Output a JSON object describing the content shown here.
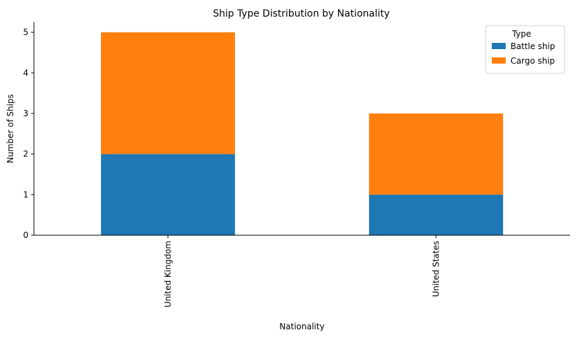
{
  "chart_data": {
    "type": "bar",
    "stacked": true,
    "title": "Ship Type Distribution by Nationality",
    "xlabel": "Nationality",
    "ylabel": "Number of Ships",
    "categories": [
      "United Kingdom",
      "United States"
    ],
    "series": [
      {
        "name": "Battle ship",
        "values": [
          2,
          1
        ],
        "color": "#1f77b4"
      },
      {
        "name": "Cargo ship",
        "values": [
          3,
          2
        ],
        "color": "#ff7f0e"
      }
    ],
    "ylim": [
      0,
      5.25
    ],
    "yticks": [
      0,
      1,
      2,
      3,
      4,
      5
    ],
    "legend": {
      "title": "Type",
      "placement": "top-right"
    },
    "grid": false
  }
}
